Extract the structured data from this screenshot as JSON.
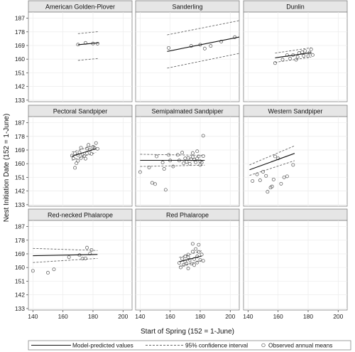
{
  "chart_data": {
    "type": "scatter",
    "ylabel": "Nest Initiation Date (152 = 1-June)",
    "xlabel": "Start of Spring (152 = 1-June)",
    "x_ticks": [
      140,
      160,
      180,
      200
    ],
    "y_ticks": [
      133,
      142,
      151,
      160,
      169,
      178,
      187
    ],
    "xlim": [
      137,
      206
    ],
    "ylim": [
      132,
      191
    ],
    "legend": {
      "placement": "bottom",
      "items": [
        "Model-predicted values",
        "95% confidence interval",
        "Observed annual means"
      ]
    },
    "panels": [
      {
        "title": "American Golden-Plover",
        "line": [
          [
            170,
            169.5
          ],
          [
            184,
            170.8
          ]
        ],
        "ci_upper": [
          [
            170,
            176.8
          ],
          [
            184,
            178.2
          ]
        ],
        "ci_lower": [
          [
            170,
            159.2
          ],
          [
            184,
            160.5
          ]
        ],
        "points": [
          [
            170,
            169.6
          ],
          [
            175,
            170.7
          ],
          [
            180,
            170.3
          ],
          [
            183,
            170.2
          ]
        ]
      },
      {
        "title": "Sanderling",
        "line": [
          [
            158,
            165.1
          ],
          [
            206,
            174.6
          ]
        ],
        "ci_upper": [
          [
            158,
            176.0
          ],
          [
            206,
            185.4
          ]
        ],
        "ci_lower": [
          [
            158,
            154.1
          ],
          [
            206,
            163.8
          ]
        ],
        "points": [
          [
            159,
            167.4
          ],
          [
            174,
            168.7
          ],
          [
            180,
            169.5
          ],
          [
            187,
            168.7
          ],
          [
            183,
            167.0
          ],
          [
            194,
            171.6
          ],
          [
            203,
            174.5
          ]
        ]
      },
      {
        "title": "Dunlin",
        "line": [
          [
            158,
            160.9
          ],
          [
            182,
            164.3
          ]
        ],
        "ci_upper": [
          [
            158,
            164.0
          ],
          [
            182,
            167.5
          ]
        ],
        "ci_lower": [
          [
            158,
            157.9
          ],
          [
            182,
            161.3
          ]
        ],
        "points": [
          [
            158,
            157.4
          ],
          [
            163,
            159.7
          ],
          [
            166,
            162.7
          ],
          [
            168,
            160.4
          ],
          [
            170,
            162.7
          ],
          [
            172,
            159.6
          ],
          [
            173,
            161.5
          ],
          [
            174,
            164.1
          ],
          [
            176,
            164.6
          ],
          [
            177,
            162.2
          ],
          [
            178,
            165.4
          ],
          [
            181,
            164.3
          ],
          [
            182,
            166.5
          ],
          [
            183,
            162.8
          ],
          [
            180,
            162.0
          ]
        ]
      },
      {
        "title": "Pectoral Sandpiper",
        "line": [
          [
            166,
            164.9
          ],
          [
            182,
            169.9
          ]
        ],
        "ci_upper": [
          [
            166,
            167.6
          ],
          [
            182,
            172.3
          ]
        ],
        "ci_lower": [
          [
            166,
            162.3
          ],
          [
            182,
            167.4
          ]
        ],
        "points": [
          [
            166,
            165.3
          ],
          [
            167,
            163.5
          ],
          [
            168,
            166.8
          ],
          [
            168,
            157.3
          ],
          [
            169,
            160.3
          ],
          [
            170,
            161.9
          ],
          [
            170,
            165.7
          ],
          [
            171,
            167.5
          ],
          [
            172,
            163.7
          ],
          [
            172,
            170.5
          ],
          [
            173,
            166.2
          ],
          [
            174,
            165.0
          ],
          [
            175,
            163.3
          ],
          [
            176,
            166.8
          ],
          [
            176,
            170.0
          ],
          [
            177,
            172.4
          ],
          [
            178,
            169.0
          ],
          [
            179,
            166.5
          ],
          [
            180,
            171.0
          ],
          [
            181,
            170.3
          ],
          [
            182,
            173.6
          ],
          [
            183,
            169.8
          ]
        ]
      },
      {
        "title": "Semipalmated Sandpiper",
        "line": [
          [
            140,
            162.2
          ],
          [
            183,
            162.2
          ]
        ],
        "ci_upper": [
          [
            140,
            166.2
          ],
          [
            183,
            165.5
          ]
        ],
        "ci_lower": [
          [
            140,
            158.2
          ],
          [
            183,
            159.0
          ]
        ],
        "points": [
          [
            140,
            154.5
          ],
          [
            146,
            157.5
          ],
          [
            148,
            147.4
          ],
          [
            150,
            146.6
          ],
          [
            151,
            164.8
          ],
          [
            155,
            160.8
          ],
          [
            156,
            156.6
          ],
          [
            157,
            142.8
          ],
          [
            159,
            165.8
          ],
          [
            160,
            162.1
          ],
          [
            162,
            158.2
          ],
          [
            165,
            165.8
          ],
          [
            166,
            162.1
          ],
          [
            168,
            167.3
          ],
          [
            169,
            160.3
          ],
          [
            170,
            163.5
          ],
          [
            171,
            161.2
          ],
          [
            172,
            163.8
          ],
          [
            173,
            160.0
          ],
          [
            174,
            162.9
          ],
          [
            175,
            164.4
          ],
          [
            176,
            162.6
          ],
          [
            177,
            160.9
          ],
          [
            178,
            163.5
          ],
          [
            179,
            164.8
          ],
          [
            180,
            161.6
          ],
          [
            181,
            160.8
          ],
          [
            182,
            165.0
          ],
          [
            182,
            178.4
          ],
          [
            178,
            168.2
          ],
          [
            175,
            167.0
          ],
          [
            180,
            159.2
          ]
        ]
      },
      {
        "title": "Western Sandpiper",
        "line": [
          [
            141,
            156.0
          ],
          [
            171,
            166.8
          ]
        ],
        "ci_upper": [
          [
            141,
            159.2
          ],
          [
            171,
            171.8
          ]
        ],
        "ci_lower": [
          [
            141,
            152.3
          ],
          [
            171,
            162.0
          ]
        ],
        "points": [
          [
            143,
            148.6
          ],
          [
            146,
            153.0
          ],
          [
            148,
            149.1
          ],
          [
            150,
            154.7
          ],
          [
            152,
            152.0
          ],
          [
            153,
            141.5
          ],
          [
            155,
            144.3
          ],
          [
            156,
            145.0
          ],
          [
            157,
            149.6
          ],
          [
            158,
            164.8
          ],
          [
            160,
            163.5
          ],
          [
            162,
            146.8
          ],
          [
            164,
            151.0
          ],
          [
            166,
            151.7
          ],
          [
            170,
            159.2
          ]
        ]
      },
      {
        "title": "Red-necked Phalarope",
        "line": [
          [
            140,
            167.8
          ],
          [
            183,
            168.6
          ]
        ],
        "ci_upper": [
          [
            140,
            172.6
          ],
          [
            183,
            171.2
          ]
        ],
        "ci_lower": [
          [
            140,
            163.3
          ],
          [
            183,
            166.0
          ]
        ],
        "points": [
          [
            140,
            157.8
          ],
          [
            150,
            156.6
          ],
          [
            154,
            158.8
          ],
          [
            164,
            166.8
          ],
          [
            171,
            168.2
          ],
          [
            173,
            165.8
          ],
          [
            175,
            166.0
          ],
          [
            176,
            173.1
          ],
          [
            178,
            169.2
          ],
          [
            179,
            171.6
          ]
        ]
      },
      {
        "title": "Red Phalarope",
        "line": [
          [
            166,
            163.8
          ],
          [
            181,
            167.6
          ]
        ],
        "ci_upper": [
          [
            166,
            166.6
          ],
          [
            181,
            171.0
          ]
        ],
        "ci_lower": [
          [
            166,
            160.7
          ],
          [
            181,
            164.6
          ]
        ],
        "points": [
          [
            166,
            163.0
          ],
          [
            167,
            160.1
          ],
          [
            168,
            165.7
          ],
          [
            169,
            161.8
          ],
          [
            170,
            164.1
          ],
          [
            170,
            167.3
          ],
          [
            171,
            162.5
          ],
          [
            172,
            168.5
          ],
          [
            172,
            159.4
          ],
          [
            173,
            165.1
          ],
          [
            174,
            162.6
          ],
          [
            175,
            170.4
          ],
          [
            176,
            165.6
          ],
          [
            176,
            161.6
          ],
          [
            177,
            172.2
          ],
          [
            178,
            167.3
          ],
          [
            178,
            163.3
          ],
          [
            179,
            170.3
          ],
          [
            180,
            165.0
          ],
          [
            181,
            168.6
          ],
          [
            182,
            164.4
          ],
          [
            175,
            175.6
          ],
          [
            172,
            166.8
          ],
          [
            179,
            175.0
          ]
        ]
      },
      {
        "title": "",
        "line": [],
        "ci_upper": [],
        "ci_lower": [],
        "points": []
      }
    ]
  }
}
